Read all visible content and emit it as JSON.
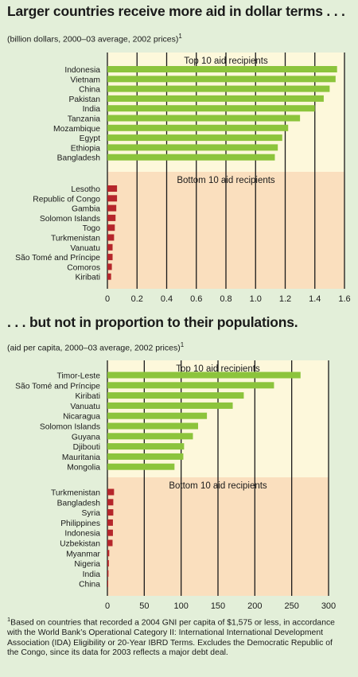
{
  "header1": {
    "title": "Larger countries receive more aid in dollar terms . . .",
    "subtitle": "(billion dollars, 2000–03 average, 2002 prices)",
    "note_marker": "1"
  },
  "header2": {
    "title": ". . . but not in proportion to their populations.",
    "subtitle": "(aid per capita, 2000–03 average, 2002 prices)",
    "note_marker": "1"
  },
  "colors": {
    "background": "#e3efd9",
    "top_panel": "#fdf8db",
    "bottom_panel": "#fadfbe",
    "top_bar": "#8cc43c",
    "bottom_bar": "#b5262b",
    "grid": "#1a1a1a"
  },
  "chart_data": [
    {
      "type": "bar",
      "orientation": "horizontal",
      "xlim": [
        0,
        1.6
      ],
      "ticks": [
        "0",
        "0.2",
        "0.4",
        "0.6",
        "0.8",
        "1.0",
        "1.2",
        "1.4",
        "1.6"
      ],
      "groups": [
        {
          "name": "Top 10 aid recipients",
          "categories": [
            "Indonesia",
            "Vietnam",
            "China",
            "Pakistan",
            "India",
            "Tanzania",
            "Mozambique",
            "Egypt",
            "Ethiopia",
            "Bangladesh"
          ],
          "values": [
            1.55,
            1.54,
            1.5,
            1.46,
            1.4,
            1.3,
            1.22,
            1.18,
            1.15,
            1.13
          ]
        },
        {
          "name": "Bottom 10 aid recipients",
          "categories": [
            "Lesotho",
            "Republic of Congo",
            "Gambia",
            "Solomon Islands",
            "Togo",
            "Turkmenistan",
            "Vanuatu",
            "São Tomé and Príncipe",
            "Comoros",
            "Kiribati"
          ],
          "values": [
            0.065,
            0.065,
            0.06,
            0.055,
            0.05,
            0.045,
            0.035,
            0.035,
            0.03,
            0.025
          ]
        }
      ]
    },
    {
      "type": "bar",
      "orientation": "horizontal",
      "xlim": [
        0,
        300
      ],
      "ticks": [
        "0",
        "50",
        "100",
        "150",
        "200",
        "250",
        "300"
      ],
      "groups": [
        {
          "name": "Top 10 aid recipients",
          "categories": [
            "Timor-Leste",
            "São Tomé and Príncipe",
            "Kiribati",
            "Vanuatu",
            "Nicaragua",
            "Solomon Islands",
            "Guyana",
            "Djibouti",
            "Mauritania",
            "Mongolia"
          ],
          "values": [
            262,
            226,
            185,
            170,
            135,
            123,
            116,
            104,
            103,
            91
          ]
        },
        {
          "name": "Bottom 10 aid recipients",
          "categories": [
            "Turkmenistan",
            "Bangladesh",
            "Syria",
            "Philippines",
            "Indonesia",
            "Uzbekistan",
            "Myanmar",
            "Nigeria",
            "India",
            "China"
          ],
          "values": [
            9,
            8,
            8,
            7.5,
            7.5,
            7,
            2.5,
            2,
            1.5,
            1
          ]
        }
      ]
    }
  ],
  "footnote": {
    "marker": "1",
    "text": "Based on countries that recorded a 2004 GNI per capita of $1,575 or less, in accordance with the World Bank’s Operational Category II: International International Development Association (IDA) Eligibility or 20-Year IBRD Terms. Excludes the Democratic Republic of the Congo, since its data for 2003 reflects a major debt deal."
  }
}
